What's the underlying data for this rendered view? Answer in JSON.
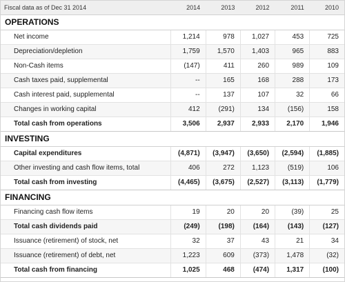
{
  "header": {
    "label": "Fiscal data as of Dec 31 2014",
    "years": [
      "2014",
      "2013",
      "2012",
      "2011",
      "2010"
    ]
  },
  "sections": [
    {
      "title": "OPERATIONS",
      "rows": [
        {
          "label": "Net income",
          "values": [
            "1,214",
            "978",
            "1,027",
            "453",
            "725"
          ],
          "bold": false
        },
        {
          "label": "Depreciation/depletion",
          "values": [
            "1,759",
            "1,570",
            "1,403",
            "965",
            "883"
          ],
          "bold": false
        },
        {
          "label": "Non-Cash items",
          "values": [
            "(147)",
            "411",
            "260",
            "989",
            "109"
          ],
          "bold": false
        },
        {
          "label": "Cash taxes paid, supplemental",
          "values": [
            "--",
            "165",
            "168",
            "288",
            "173"
          ],
          "bold": false
        },
        {
          "label": "Cash interest paid, supplemental",
          "values": [
            "--",
            "137",
            "107",
            "32",
            "66"
          ],
          "bold": false
        },
        {
          "label": "Changes in working capital",
          "values": [
            "412",
            "(291)",
            "134",
            "(156)",
            "158"
          ],
          "bold": false
        },
        {
          "label": "Total cash from operations",
          "values": [
            "3,506",
            "2,937",
            "2,933",
            "2,170",
            "1,946"
          ],
          "bold": true,
          "total": true
        }
      ]
    },
    {
      "title": "INVESTING",
      "rows": [
        {
          "label": "Capital expenditures",
          "values": [
            "(4,871)",
            "(3,947)",
            "(3,650)",
            "(2,594)",
            "(1,885)"
          ],
          "bold": true
        },
        {
          "label": "Other investing and cash flow items, total",
          "values": [
            "406",
            "272",
            "1,123",
            "(519)",
            "106"
          ],
          "bold": false
        },
        {
          "label": "Total cash from investing",
          "values": [
            "(4,465)",
            "(3,675)",
            "(2,527)",
            "(3,113)",
            "(1,779)"
          ],
          "bold": true,
          "total": true
        }
      ]
    },
    {
      "title": "FINANCING",
      "rows": [
        {
          "label": "Financing cash flow items",
          "values": [
            "19",
            "20",
            "20",
            "(39)",
            "25"
          ],
          "bold": false
        },
        {
          "label": "Total cash dividends paid",
          "values": [
            "(249)",
            "(198)",
            "(164)",
            "(143)",
            "(127)"
          ],
          "bold": true
        },
        {
          "label": "Issuance (retirement) of stock, net",
          "values": [
            "32",
            "37",
            "43",
            "21",
            "34"
          ],
          "bold": false
        },
        {
          "label": "Issuance (retirement) of debt, net",
          "values": [
            "1,223",
            "609",
            "(373)",
            "1,478",
            "(32)"
          ],
          "bold": false
        },
        {
          "label": "Total cash from financing",
          "values": [
            "1,025",
            "468",
            "(474)",
            "1,317",
            "(100)"
          ],
          "bold": true,
          "total": true
        }
      ]
    }
  ]
}
